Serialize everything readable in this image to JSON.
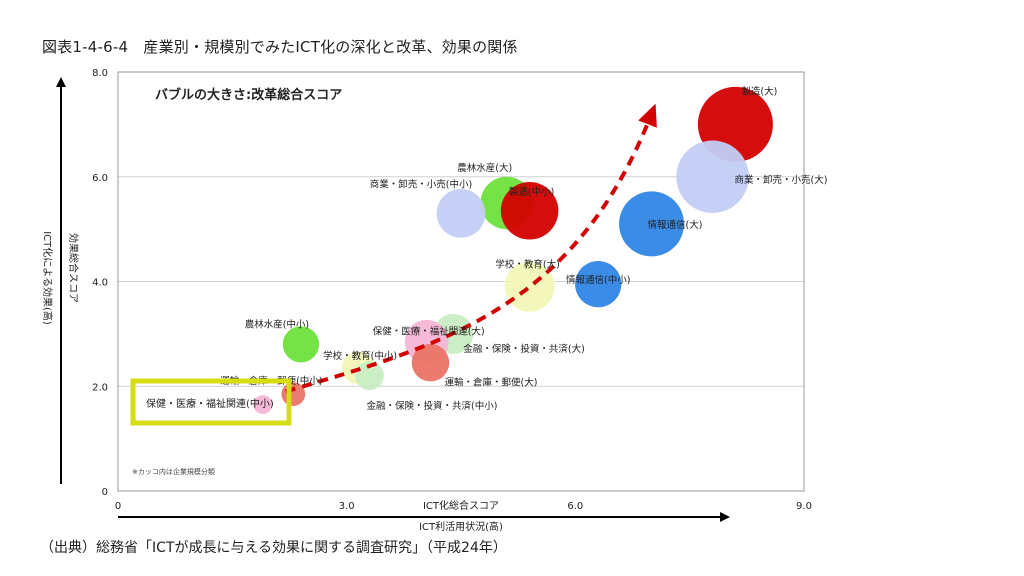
{
  "figure_title": "図表1-4-6-4　産業別・規模別でみたICT化の深化と改革、効果の関係",
  "source": "（出典）総務省「ICTが成長に与える効果に関する調査研究」（平成24年）",
  "chart_data": {
    "type": "scatter",
    "subtitle": "バブルの大きさ:改革総合スコア",
    "xlabel_top": "ICT化総合スコア",
    "xlabel_bottom": "ICT利活用状況(高)",
    "ylabel_outer": "ICT化による効果(高)",
    "ylabel_inner": "効果総合スコア",
    "note": "※カッコ内は企業規模分類",
    "xlim": [
      0,
      9
    ],
    "ylim": [
      0,
      8
    ],
    "xticks": [
      {
        "v": 0,
        "label": "0"
      },
      {
        "v": 3,
        "label": "3.0"
      },
      {
        "v": 6,
        "label": "6.0"
      },
      {
        "v": 9,
        "label": "9.0"
      }
    ],
    "yticks": [
      {
        "v": 0,
        "label": "0"
      },
      {
        "v": 2,
        "label": "2.0"
      },
      {
        "v": 4,
        "label": "4.0"
      },
      {
        "v": 6,
        "label": "6.0"
      },
      {
        "v": 8,
        "label": "8.0"
      }
    ],
    "points": [
      {
        "label": "製造(大)",
        "x": 8.1,
        "y": 7.0,
        "r": 3.0,
        "color": "#d40000"
      },
      {
        "label": "商業・卸売・小売(大)",
        "x": 7.8,
        "y": 6.0,
        "r": 2.9,
        "color": "#c3cef6"
      },
      {
        "label": "情報通信(大)",
        "x": 7.0,
        "y": 5.1,
        "r": 2.6,
        "color": "#2f86e6"
      },
      {
        "label": "農林水産(大)",
        "x": 5.1,
        "y": 5.5,
        "r": 2.1,
        "color": "#6ee23c"
      },
      {
        "label": "製造(中小)",
        "x": 5.4,
        "y": 5.35,
        "r": 2.3,
        "color": "#d40000"
      },
      {
        "label": "商業・卸売・小売(中小)",
        "x": 4.5,
        "y": 5.3,
        "r": 1.95,
        "color": "#c3cef6"
      },
      {
        "label": "学校・教育(大)",
        "x": 5.4,
        "y": 3.9,
        "r": 2.0,
        "color": "#f2f7b8"
      },
      {
        "label": "情報通信(中小)",
        "x": 6.3,
        "y": 3.95,
        "r": 1.85,
        "color": "#2f86e6"
      },
      {
        "label": "金融・保険・投資・共済(大)",
        "x": 4.4,
        "y": 3.0,
        "r": 1.6,
        "color": "#c8edc3"
      },
      {
        "label": "保健・医療・福祉関連(大)",
        "x": 4.05,
        "y": 2.85,
        "r": 1.75,
        "color": "#f6b6d6"
      },
      {
        "label": "運輸・倉庫・郵便(大)",
        "x": 4.1,
        "y": 2.45,
        "r": 1.5,
        "color": "#ea7466"
      },
      {
        "label": "農林水産(中小)",
        "x": 2.4,
        "y": 2.8,
        "r": 1.45,
        "color": "#6ee23c"
      },
      {
        "label": "学校・教育(中小)",
        "x": 3.15,
        "y": 2.35,
        "r": 1.3,
        "color": "#f2f7b8"
      },
      {
        "label": "金融・保険・投資・共済(中小)",
        "x": 3.3,
        "y": 2.2,
        "r": 1.15,
        "color": "#c8edc3"
      },
      {
        "label": "運輸・倉庫・郵便(中小)",
        "x": 2.3,
        "y": 1.85,
        "r": 0.95,
        "color": "#ea7466"
      },
      {
        "label": "保健・医療・福祉関連(中小)",
        "x": 1.9,
        "y": 1.65,
        "r": 0.75,
        "color": "#f6b6d6"
      }
    ],
    "trend_color": "#d40000",
    "highlight_color": "#d6dd16",
    "highlight_label": "保健・医療・福祉関連(中小)"
  }
}
